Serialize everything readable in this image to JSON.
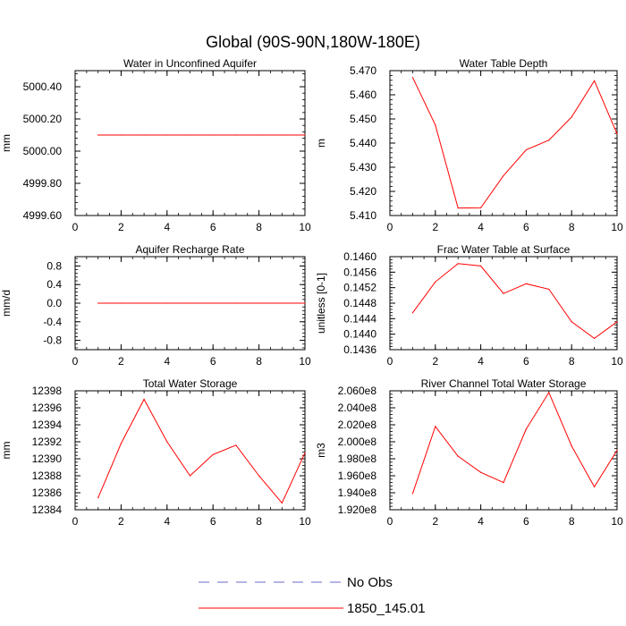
{
  "page_title": "Global (90S-90N,180W-180E)",
  "legend": {
    "entries": [
      {
        "label": "No Obs",
        "color": "#6a6acd",
        "dash": true
      },
      {
        "label": "1850_145.01",
        "color": "#ff0000",
        "dash": false
      }
    ]
  },
  "chart_data": [
    {
      "type": "line",
      "title": "Water in Unconfined Aquifer",
      "xlabel": "",
      "ylabel": "mm",
      "xlim": [
        0,
        10
      ],
      "ylim": [
        4999.6,
        5000.5
      ],
      "xticks": [
        0,
        2,
        4,
        6,
        8,
        10
      ],
      "yticks": [
        4999.6,
        4999.8,
        5000.0,
        5000.2,
        5000.4
      ],
      "ytick_labels": [
        "4999.60",
        "4999.80",
        "5000.00",
        "5000.20",
        "5000.40"
      ],
      "series": [
        {
          "color": "#ff0000",
          "x": [
            1,
            2,
            3,
            4,
            5,
            6,
            7,
            8,
            9,
            10
          ],
          "y": [
            5000.1,
            5000.1,
            5000.1,
            5000.1,
            5000.1,
            5000.1,
            5000.1,
            5000.1,
            5000.1,
            5000.1
          ]
        }
      ]
    },
    {
      "type": "line",
      "title": "Water Table Depth",
      "xlabel": "",
      "ylabel": "m",
      "xlim": [
        0,
        10
      ],
      "ylim": [
        5.41,
        5.47
      ],
      "xticks": [
        0,
        2,
        4,
        6,
        8,
        10
      ],
      "yticks": [
        5.41,
        5.42,
        5.43,
        5.44,
        5.45,
        5.46,
        5.47
      ],
      "ytick_labels": [
        "5.410",
        "5.420",
        "5.430",
        "5.440",
        "5.450",
        "5.460",
        "5.470"
      ],
      "series": [
        {
          "color": "#ff0000",
          "x": [
            1,
            2,
            3,
            4,
            5,
            6,
            7,
            8,
            9,
            10
          ],
          "y": [
            5.4672,
            5.4475,
            5.4131,
            5.4132,
            5.4265,
            5.4372,
            5.4412,
            5.4508,
            5.4658,
            5.4438
          ]
        }
      ]
    },
    {
      "type": "line",
      "title": "Aquifer Recharge Rate",
      "xlabel": "",
      "ylabel": "mm/d",
      "xlim": [
        0,
        10
      ],
      "ylim": [
        -1.0,
        1.0
      ],
      "xticks": [
        0,
        2,
        4,
        6,
        8,
        10
      ],
      "yticks": [
        -0.8,
        -0.4,
        0.0,
        0.4,
        0.8
      ],
      "ytick_labels": [
        "-0.8",
        "-0.4",
        "0.0",
        "0.4",
        "0.8"
      ],
      "series": [
        {
          "color": "#ff0000",
          "x": [
            1,
            2,
            3,
            4,
            5,
            6,
            7,
            8,
            9,
            10
          ],
          "y": [
            0,
            0,
            0,
            0,
            0,
            0,
            0,
            0,
            0,
            0
          ]
        }
      ]
    },
    {
      "type": "line",
      "title": "Frac Water Table at Surface",
      "xlabel": "",
      "ylabel": "unitless [0-1]",
      "xlim": [
        0,
        10
      ],
      "ylim": [
        0.1436,
        0.146
      ],
      "xticks": [
        0,
        2,
        4,
        6,
        8,
        10
      ],
      "yticks": [
        0.1436,
        0.144,
        0.1444,
        0.1448,
        0.1452,
        0.1456,
        0.146
      ],
      "ytick_labels": [
        "0.1436",
        "0.1440",
        "0.1444",
        "0.1448",
        "0.1452",
        "0.1456",
        "0.1460"
      ],
      "series": [
        {
          "color": "#ff0000",
          "x": [
            1,
            2,
            3,
            4,
            5,
            6,
            7,
            8,
            9,
            10
          ],
          "y": [
            0.14455,
            0.14535,
            0.14582,
            0.14576,
            0.14505,
            0.1453,
            0.14516,
            0.14432,
            0.14389,
            0.14432
          ]
        }
      ]
    },
    {
      "type": "line",
      "title": "Total Water Storage",
      "xlabel": "",
      "ylabel": "mm",
      "xlim": [
        0,
        10
      ],
      "ylim": [
        12384,
        12398
      ],
      "xticks": [
        0,
        2,
        4,
        6,
        8,
        10
      ],
      "yticks": [
        12384,
        12386,
        12388,
        12390,
        12392,
        12394,
        12396,
        12398
      ],
      "ytick_labels": [
        "12384",
        "12386",
        "12388",
        "12390",
        "12392",
        "12394",
        "12396",
        "12398"
      ],
      "series": [
        {
          "color": "#ff0000",
          "x": [
            1,
            2,
            3,
            4,
            5,
            6,
            7,
            8,
            9,
            10
          ],
          "y": [
            12385.4,
            12391.8,
            12397.0,
            12392.0,
            12388.0,
            12390.5,
            12391.6,
            12388.0,
            12384.8,
            12390.7
          ]
        }
      ]
    },
    {
      "type": "line",
      "title": "River Channel Total Water Storage",
      "xlabel": "",
      "ylabel": "m3",
      "xlim": [
        0,
        10
      ],
      "ylim": [
        192000000.0,
        206000000.0
      ],
      "xticks": [
        0,
        2,
        4,
        6,
        8,
        10
      ],
      "yticks": [
        192000000.0,
        194000000.0,
        196000000.0,
        198000000.0,
        200000000.0,
        202000000.0,
        204000000.0,
        206000000.0
      ],
      "ytick_labels": [
        "1.920e8",
        "1.940e8",
        "1.960e8",
        "1.980e8",
        "2.000e8",
        "2.020e8",
        "2.040e8",
        "2.060e8"
      ],
      "series": [
        {
          "color": "#ff0000",
          "x": [
            1,
            2,
            3,
            4,
            5,
            6,
            7,
            8,
            9,
            10
          ],
          "y": [
            193900000.0,
            201800000.0,
            198300000.0,
            196400000.0,
            195200000.0,
            201500000.0,
            205800000.0,
            199500000.0,
            194700000.0,
            199000000.0
          ]
        }
      ]
    }
  ]
}
